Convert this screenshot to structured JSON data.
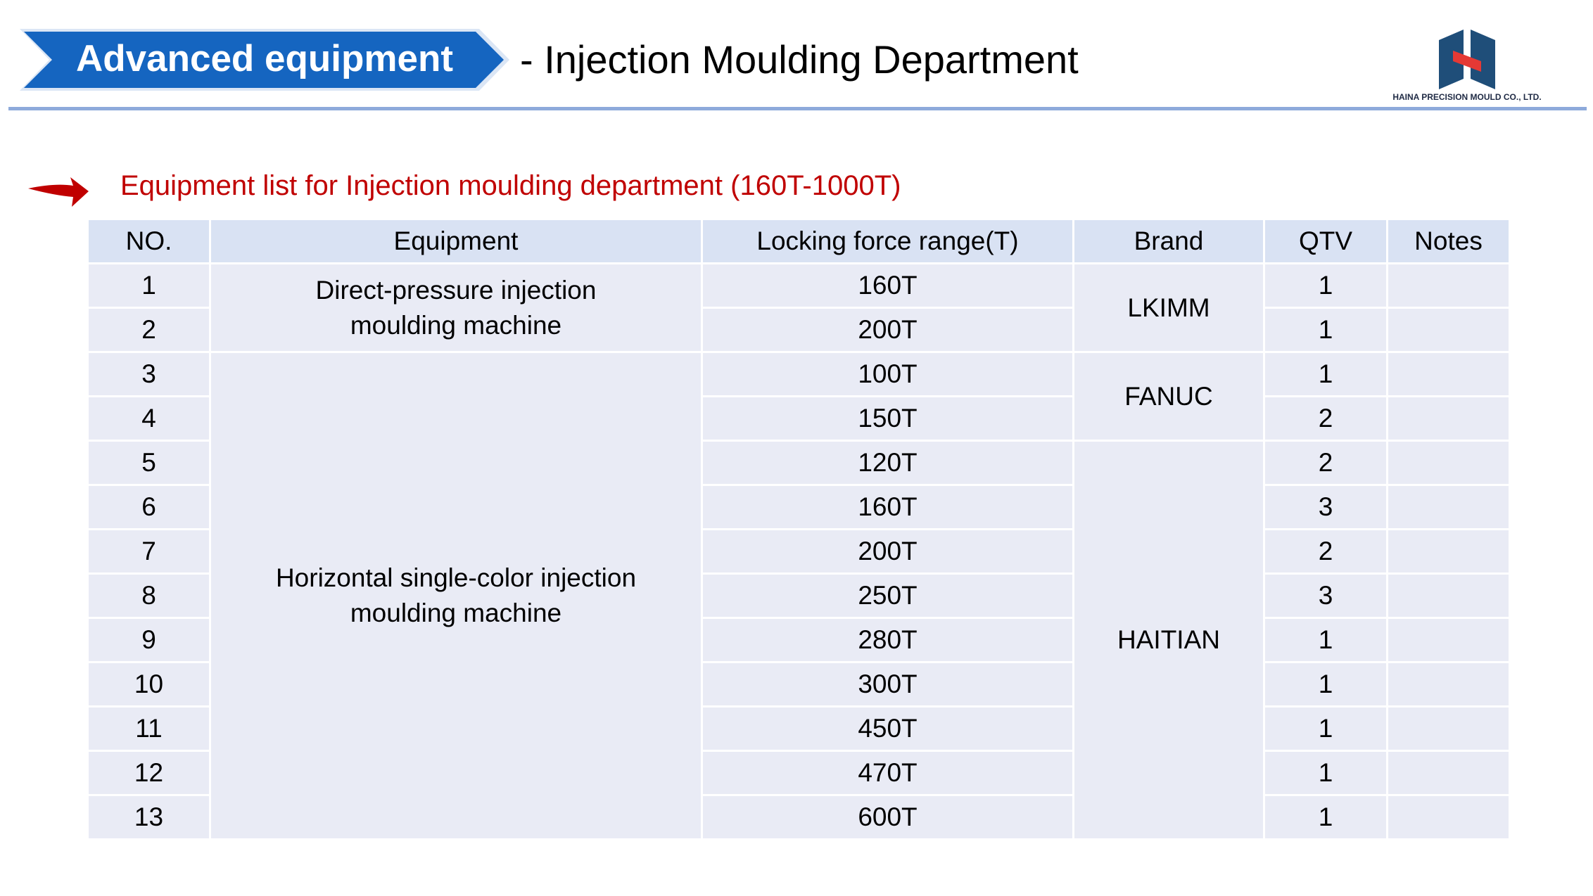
{
  "header": {
    "badge": "Advanced equipment",
    "title": "- Injection Moulding Department",
    "logo_text": "HAINA PRECISION MOULD CO., LTD."
  },
  "section_title": "Equipment list for Injection moulding department (160T-1000T)",
  "table": {
    "columns": [
      "NO.",
      "Equipment",
      "Locking force range(T)",
      "Brand",
      "QTV",
      "Notes"
    ],
    "rows": [
      [
        "1",
        "Direct-pressure injection moulding machine",
        "160T",
        "LKIMM",
        "1"
      ],
      [
        "2",
        null,
        "200T",
        null,
        "1"
      ],
      [
        "3",
        "Horizontal single-color injection moulding machine",
        "100T",
        "FANUC",
        "1"
      ],
      [
        "4",
        null,
        "150T",
        null,
        "2"
      ],
      [
        "5",
        null,
        "120T",
        "HAITIAN",
        "2"
      ],
      [
        "6",
        null,
        "160T",
        null,
        "3"
      ],
      [
        "7",
        null,
        "200T",
        null,
        "2"
      ],
      [
        "8",
        null,
        "250T",
        null,
        "3"
      ],
      [
        "9",
        null,
        "280T",
        null,
        "1"
      ],
      [
        "10",
        null,
        "300T",
        null,
        "1"
      ],
      [
        "11",
        null,
        "450T",
        null,
        "1"
      ],
      [
        "12",
        null,
        "470T",
        null,
        "1"
      ],
      [
        "13",
        null,
        "600T",
        null,
        "1"
      ]
    ]
  }
}
